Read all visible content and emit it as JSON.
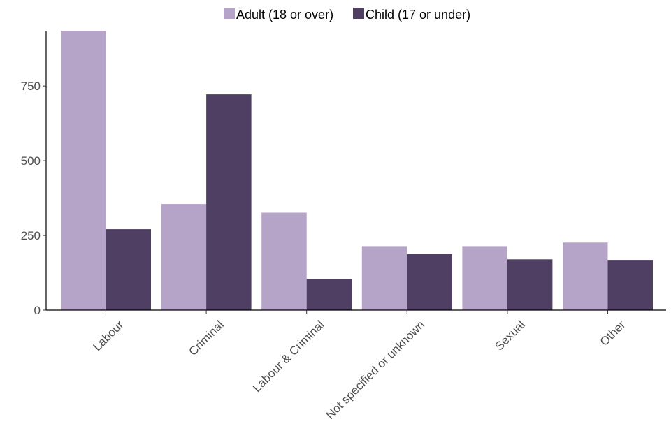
{
  "chart_data": {
    "type": "bar",
    "title": "",
    "xlabel": "",
    "ylabel": "",
    "categories": [
      "Labour",
      "Criminal",
      "Labour & Criminal",
      "Not specified or unknown",
      "Sexual",
      "Other"
    ],
    "series": [
      {
        "name": "Adult (18 or over)",
        "color": "#b5a3c8",
        "values": [
          935,
          355,
          326,
          214,
          214,
          226
        ]
      },
      {
        "name": "Child (17 or under)",
        "color": "#4f3f63",
        "values": [
          271,
          722,
          104,
          188,
          170,
          168
        ]
      }
    ],
    "ylim": [
      0,
      935
    ],
    "yticks": [
      0,
      250,
      500,
      750
    ],
    "ytick_labels": [
      "0",
      "250",
      "500",
      "750"
    ],
    "legend_position": "top",
    "grid": false
  }
}
